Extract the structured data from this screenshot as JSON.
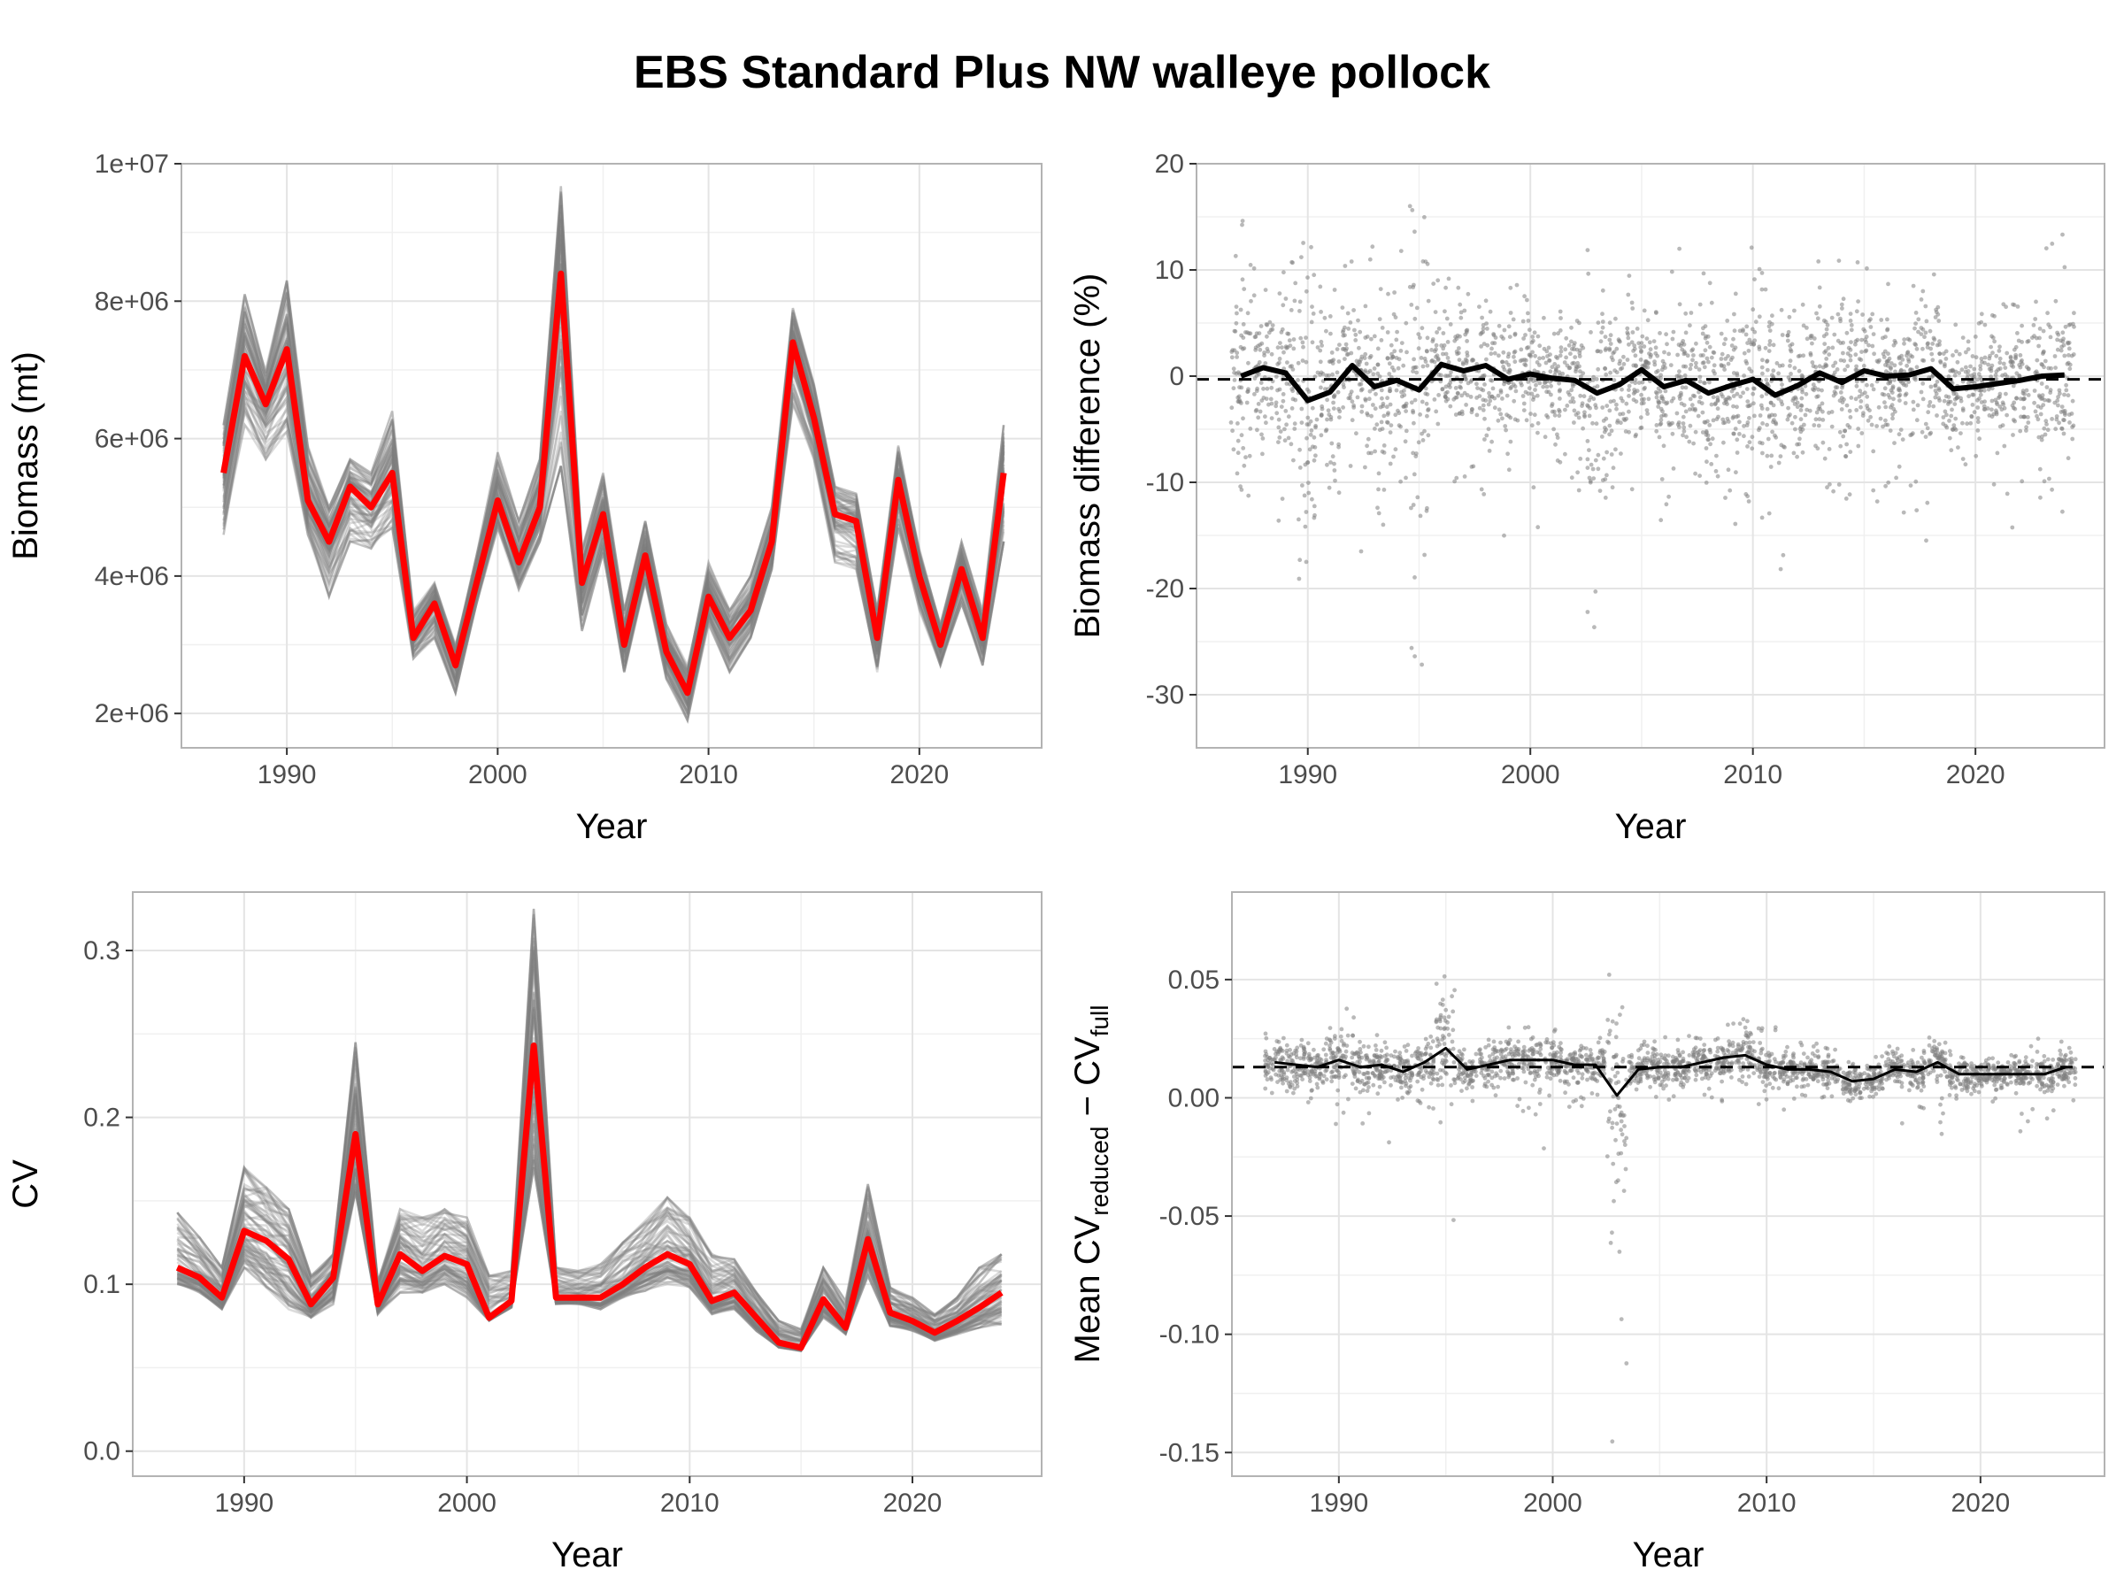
{
  "title": "EBS Standard Plus NW walleye pollock",
  "colors": {
    "grid": "#e4e4e4",
    "panel_border": "#b3b3b3",
    "ensemble": "#7f7f7f",
    "highlight": "#ff0000",
    "mean": "#000000",
    "points": "#808080"
  },
  "chart_data": [
    {
      "type": "line",
      "xlabel": "Year",
      "ylabel": "Biomass (mt)",
      "xlim": [
        1985,
        2025.8
      ],
      "ylim": [
        1500000,
        10000000
      ],
      "x_ticks": [
        1990,
        2000,
        2010,
        2020
      ],
      "x_tick_labels": [
        "1990",
        "2000",
        "2010",
        "2020"
      ],
      "y_ticks": [
        2000000,
        4000000,
        6000000,
        8000000,
        10000000
      ],
      "y_tick_labels": [
        "2e+06",
        "4e+06",
        "6e+06",
        "8e+06",
        "1e+07"
      ],
      "x": [
        1987,
        1988,
        1989,
        1990,
        1991,
        1992,
        1993,
        1994,
        1995,
        1996,
        1997,
        1998,
        1999,
        2000,
        2001,
        2002,
        2003,
        2004,
        2005,
        2006,
        2007,
        2008,
        2009,
        2010,
        2011,
        2012,
        2013,
        2014,
        2015,
        2016,
        2017,
        2018,
        2019,
        2020,
        2021,
        2022,
        2023,
        2024
      ],
      "highlight_series": [
        5500000,
        7200000,
        6500000,
        7300000,
        5100000,
        4500000,
        5300000,
        5000000,
        5500000,
        3100000,
        3600000,
        2700000,
        3900000,
        5100000,
        4200000,
        5000000,
        8400000,
        3900000,
        4900000,
        3000000,
        4300000,
        2900000,
        2300000,
        3700000,
        3100000,
        3500000,
        4500000,
        7400000,
        6300000,
        4900000,
        4800000,
        3100000,
        5400000,
        4000000,
        3000000,
        4100000,
        3100000,
        5500000
      ],
      "ensemble": {
        "member_count": 80,
        "upper_envelope": [
          6200000,
          8100000,
          7000000,
          8300000,
          5900000,
          5000000,
          5700000,
          5500000,
          6400000,
          3500000,
          3900000,
          3000000,
          4300000,
          5800000,
          4800000,
          5700000,
          9700000,
          4400000,
          5500000,
          3500000,
          4800000,
          3300000,
          2700000,
          4200000,
          3500000,
          4000000,
          5000000,
          7900000,
          6800000,
          5300000,
          5200000,
          3500000,
          5900000,
          4400000,
          3300000,
          4500000,
          3500000,
          6200000
        ],
        "lower_envelope": [
          4600000,
          6200000,
          5700000,
          6100000,
          4600000,
          3700000,
          4500000,
          4400000,
          4700000,
          2800000,
          3100000,
          2300000,
          3600000,
          4700000,
          3800000,
          4500000,
          5600000,
          3200000,
          4300000,
          2600000,
          3900000,
          2500000,
          1900000,
          3300000,
          2600000,
          3100000,
          4100000,
          6500000,
          5700000,
          4200000,
          4100000,
          2600000,
          4700000,
          3500000,
          2700000,
          3600000,
          2700000,
          4500000
        ]
      }
    },
    {
      "type": "scatter",
      "xlabel": "Year",
      "ylabel": "Biomass difference (%)",
      "xlim": [
        1985,
        2025.8
      ],
      "ylim": [
        -35,
        20
      ],
      "x_ticks": [
        1990,
        2000,
        2010,
        2020
      ],
      "x_tick_labels": [
        "1990",
        "2000",
        "2010",
        "2020"
      ],
      "y_ticks": [
        -30,
        -20,
        -10,
        0,
        10,
        20
      ],
      "y_tick_labels": [
        "-30",
        "-20",
        "-10",
        "0",
        "10",
        "20"
      ],
      "reference_line": {
        "y": -0.3,
        "style": "dashed"
      },
      "x": [
        1987,
        1988,
        1989,
        1990,
        1991,
        1992,
        1993,
        1994,
        1995,
        1996,
        1997,
        1998,
        1999,
        2000,
        2001,
        2002,
        2003,
        2004,
        2005,
        2006,
        2007,
        2008,
        2009,
        2010,
        2011,
        2012,
        2013,
        2014,
        2015,
        2016,
        2017,
        2018,
        2019,
        2020,
        2021,
        2022,
        2023,
        2024
      ],
      "mean_line": [
        0.0,
        0.8,
        0.3,
        -2.3,
        -1.5,
        1.0,
        -1.0,
        -0.4,
        -1.3,
        1.1,
        0.5,
        1.0,
        -0.3,
        0.2,
        -0.2,
        -0.4,
        -1.6,
        -0.8,
        0.6,
        -1.0,
        -0.4,
        -1.6,
        -0.9,
        -0.3,
        -1.8,
        -0.9,
        0.3,
        -0.6,
        0.5,
        0.0,
        0.1,
        0.7,
        -1.2,
        -1.0,
        -0.7,
        -0.4,
        0.0,
        0.1
      ],
      "point_spread": {
        "upper": [
          15,
          11,
          13,
          14,
          14,
          11,
          13,
          12,
          17,
          10,
          9,
          11,
          9,
          10,
          9,
          9,
          15,
          12,
          10,
          10,
          12,
          11,
          9,
          14,
          11,
          10,
          11,
          11,
          11,
          10,
          9,
          12,
          7,
          6,
          7,
          10,
          13,
          14
        ],
        "lower": [
          -16,
          -13,
          -14,
          -22,
          -11,
          -17,
          -14,
          -11,
          -33,
          -10,
          -11,
          -12,
          -16,
          -15,
          -11,
          -11,
          -31,
          -14,
          -13,
          -14,
          -13,
          -11,
          -18,
          -17,
          -19,
          -13,
          -13,
          -12,
          -14,
          -12,
          -13,
          -16,
          -10,
          -14,
          -12,
          -15,
          -13,
          -15
        ]
      }
    },
    {
      "type": "line",
      "xlabel": "Year",
      "ylabel": "CV",
      "xlim": [
        1985,
        2025.8
      ],
      "ylim": [
        -0.015,
        0.335
      ],
      "x_ticks": [
        1990,
        2000,
        2010,
        2020
      ],
      "x_tick_labels": [
        "1990",
        "2000",
        "2010",
        "2020"
      ],
      "y_ticks": [
        0.0,
        0.1,
        0.2,
        0.3
      ],
      "y_tick_labels": [
        "0.0",
        "0.1",
        "0.2",
        "0.3"
      ],
      "x": [
        1987,
        1988,
        1989,
        1990,
        1991,
        1992,
        1993,
        1994,
        1995,
        1996,
        1997,
        1998,
        1999,
        2000,
        2001,
        2002,
        2003,
        2004,
        2005,
        2006,
        2007,
        2008,
        2009,
        2010,
        2011,
        2012,
        2013,
        2014,
        2015,
        2016,
        2017,
        2018,
        2019,
        2020,
        2021,
        2022,
        2023,
        2024
      ],
      "highlight_series": [
        0.11,
        0.104,
        0.092,
        0.132,
        0.126,
        0.115,
        0.088,
        0.104,
        0.19,
        0.088,
        0.118,
        0.108,
        0.117,
        0.112,
        0.08,
        0.09,
        0.243,
        0.092,
        0.092,
        0.092,
        0.1,
        0.11,
        0.118,
        0.112,
        0.09,
        0.095,
        0.08,
        0.065,
        0.062,
        0.091,
        0.074,
        0.127,
        0.083,
        0.078,
        0.071,
        0.078,
        0.086,
        0.095
      ],
      "ensemble": {
        "member_count": 80,
        "upper_envelope": [
          0.143,
          0.128,
          0.11,
          0.17,
          0.158,
          0.145,
          0.105,
          0.118,
          0.245,
          0.102,
          0.145,
          0.14,
          0.145,
          0.14,
          0.105,
          0.108,
          0.325,
          0.11,
          0.108,
          0.112,
          0.125,
          0.138,
          0.152,
          0.14,
          0.118,
          0.115,
          0.095,
          0.078,
          0.073,
          0.11,
          0.09,
          0.16,
          0.098,
          0.092,
          0.082,
          0.092,
          0.11,
          0.118
        ],
        "lower_envelope": [
          0.1,
          0.095,
          0.085,
          0.11,
          0.098,
          0.085,
          0.08,
          0.088,
          0.155,
          0.082,
          0.095,
          0.095,
          0.1,
          0.092,
          0.078,
          0.086,
          0.17,
          0.088,
          0.088,
          0.085,
          0.092,
          0.096,
          0.1,
          0.098,
          0.082,
          0.085,
          0.072,
          0.062,
          0.06,
          0.08,
          0.07,
          0.105,
          0.075,
          0.072,
          0.066,
          0.07,
          0.074,
          0.076
        ]
      }
    },
    {
      "type": "scatter",
      "xlabel": "Year",
      "ylabel_parts": [
        "Mean CV",
        "reduced",
        " − CV",
        "full"
      ],
      "xlim": [
        1985,
        2025.8
      ],
      "ylim": [
        -0.16,
        0.087
      ],
      "x_ticks": [
        1990,
        2000,
        2010,
        2020
      ],
      "x_tick_labels": [
        "1990",
        "2000",
        "2010",
        "2020"
      ],
      "y_ticks": [
        -0.15,
        -0.1,
        -0.05,
        0.0,
        0.05
      ],
      "y_tick_labels": [
        "-0.15",
        "-0.10",
        "-0.05",
        "0.00",
        "0.05"
      ],
      "reference_line": {
        "y": 0.013,
        "style": "dashed"
      },
      "x": [
        1987,
        1988,
        1989,
        1990,
        1991,
        1992,
        1993,
        1994,
        1995,
        1996,
        1997,
        1998,
        1999,
        2000,
        2001,
        2002,
        2003,
        2004,
        2005,
        2006,
        2007,
        2008,
        2009,
        2010,
        2011,
        2012,
        2013,
        2014,
        2015,
        2016,
        2017,
        2018,
        2019,
        2020,
        2021,
        2022,
        2023,
        2024
      ],
      "mean_line": [
        0.015,
        0.014,
        0.013,
        0.016,
        0.013,
        0.014,
        0.011,
        0.015,
        0.021,
        0.012,
        0.014,
        0.016,
        0.016,
        0.016,
        0.014,
        0.014,
        0.001,
        0.012,
        0.013,
        0.013,
        0.015,
        0.017,
        0.018,
        0.014,
        0.012,
        0.012,
        0.011,
        0.007,
        0.008,
        0.012,
        0.011,
        0.015,
        0.01,
        0.01,
        0.01,
        0.01,
        0.01,
        0.013
      ],
      "point_spread": {
        "upper": [
          0.03,
          0.032,
          0.028,
          0.038,
          0.034,
          0.028,
          0.024,
          0.03,
          0.056,
          0.025,
          0.028,
          0.03,
          0.03,
          0.03,
          0.026,
          0.026,
          0.08,
          0.024,
          0.026,
          0.027,
          0.03,
          0.032,
          0.034,
          0.03,
          0.025,
          0.024,
          0.022,
          0.018,
          0.018,
          0.025,
          0.024,
          0.032,
          0.022,
          0.02,
          0.02,
          0.022,
          0.025,
          0.025
        ],
        "lower": [
          0.0,
          -0.002,
          -0.005,
          -0.012,
          -0.015,
          -0.028,
          -0.008,
          -0.01,
          -0.062,
          -0.002,
          -0.002,
          -0.005,
          -0.008,
          -0.022,
          -0.004,
          -0.002,
          -0.15,
          -0.001,
          -0.002,
          0.0,
          -0.003,
          -0.004,
          -0.006,
          -0.003,
          -0.005,
          -0.002,
          -0.001,
          -0.002,
          0.0,
          -0.012,
          -0.01,
          -0.016,
          -0.002,
          -0.002,
          -0.004,
          -0.015,
          -0.012,
          -0.005
        ]
      }
    }
  ]
}
